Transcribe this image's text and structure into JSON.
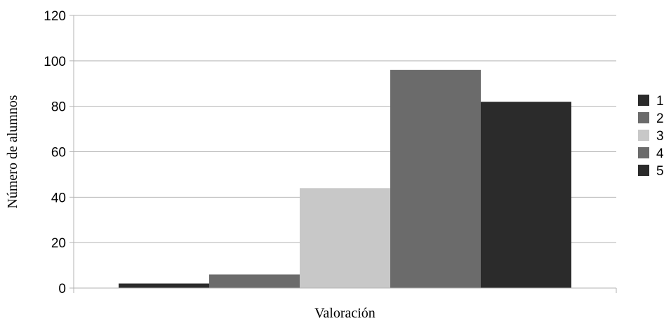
{
  "chart_data": {
    "type": "bar",
    "title": "",
    "xlabel": "Valoración",
    "ylabel": "Número de alumnos",
    "ylim": [
      0,
      120
    ],
    "yticks": [
      0,
      20,
      40,
      60,
      80,
      100,
      120
    ],
    "grid": true,
    "legend_position": "right",
    "categories": [
      ""
    ],
    "series": [
      {
        "name": "1",
        "values": [
          2
        ],
        "color": "#2b2b2b"
      },
      {
        "name": "2",
        "values": [
          6
        ],
        "color": "#6b6b6b"
      },
      {
        "name": "3",
        "values": [
          44
        ],
        "color": "#c8c8c8"
      },
      {
        "name": "4",
        "values": [
          96
        ],
        "color": "#6b6b6b"
      },
      {
        "name": "5",
        "values": [
          82
        ],
        "color": "#2b2b2b"
      }
    ]
  }
}
